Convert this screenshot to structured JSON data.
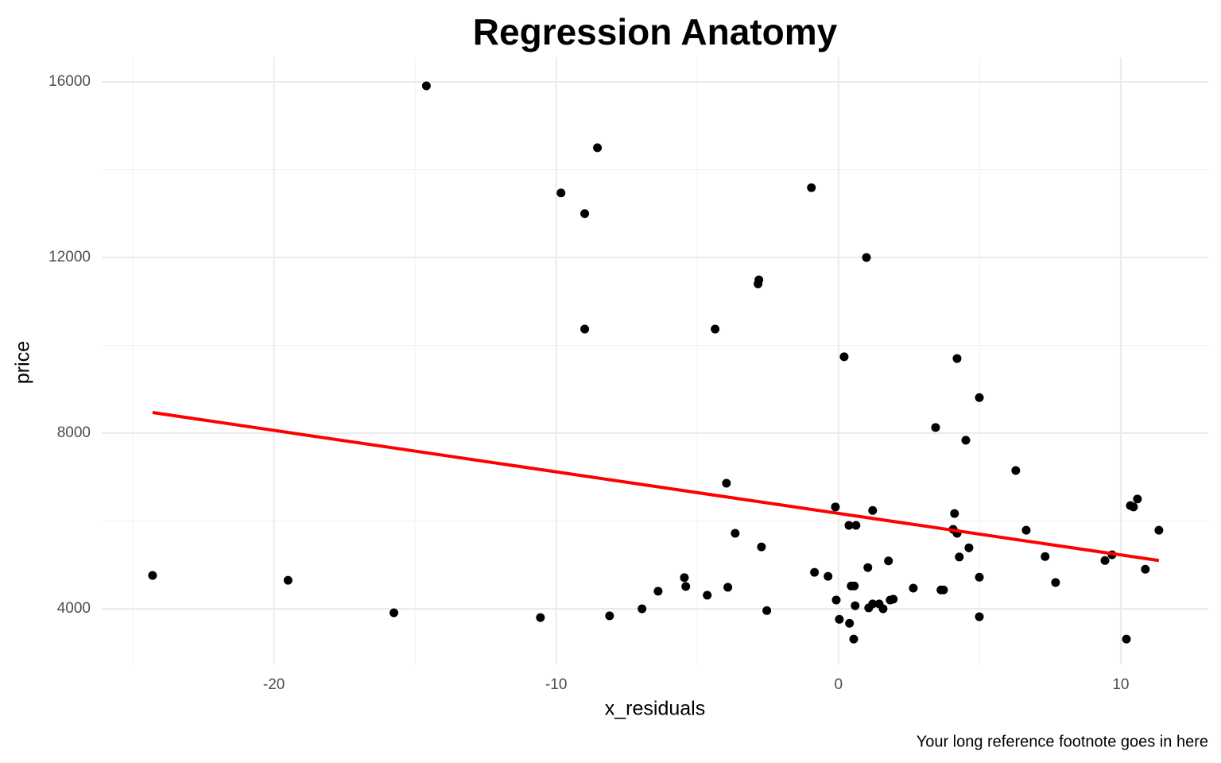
{
  "chart_data": {
    "type": "scatter",
    "title": "Regression Anatomy",
    "xlabel": "x_residuals",
    "ylabel": "price",
    "footnote": "Your long reference footnote goes in here",
    "x": [
      -24.3,
      -19.5,
      -15.75,
      -14.6,
      -10.56,
      -9.83,
      -8.99,
      -8.99,
      -8.54,
      -8.11,
      -6.96,
      -6.39,
      -5.46,
      -5.41,
      -4.65,
      -4.37,
      -3.97,
      -3.92,
      -3.66,
      -2.85,
      -2.82,
      -2.73,
      -2.54,
      -0.96,
      -0.85,
      -0.37,
      -0.11,
      -0.08,
      0.03,
      0.2,
      0.37,
      0.39,
      0.45,
      0.54,
      0.56,
      0.59,
      0.62,
      0.99,
      1.04,
      1.07,
      1.21,
      1.21,
      1.44,
      1.58,
      1.77,
      1.83,
      1.94,
      2.65,
      3.44,
      3.63,
      3.72,
      4.06,
      4.11,
      4.2,
      4.2,
      4.28,
      4.51,
      4.62,
      4.99,
      4.99,
      4.99,
      6.28,
      6.65,
      7.32,
      7.69,
      9.44,
      9.69,
      10.2,
      10.34,
      10.45,
      10.59,
      10.87,
      11.35
    ],
    "values": [
      4760,
      4650,
      3910,
      15910,
      3800,
      13470,
      13000,
      10370,
      14500,
      3840,
      4000,
      4400,
      4710,
      4510,
      4310,
      10370,
      6860,
      4490,
      5720,
      11400,
      11490,
      5410,
      3960,
      13590,
      4830,
      4740,
      6320,
      4200,
      3760,
      9740,
      5900,
      3670,
      4520,
      3310,
      4520,
      4070,
      5900,
      12000,
      4940,
      4020,
      6240,
      4110,
      4110,
      4000,
      5090,
      4200,
      4220,
      4470,
      8130,
      4430,
      4430,
      5810,
      6170,
      9700,
      5720,
      5180,
      7840,
      5390,
      8810,
      4720,
      3820,
      7150,
      5790,
      5190,
      4600,
      5100,
      5230,
      3310,
      6350,
      6320,
      6500,
      4900,
      5790
    ],
    "color": "#000000",
    "fit_line": {
      "x": [
        -24.3,
        11.35
      ],
      "values": [
        8470,
        5100
      ],
      "color": "#ff0000"
    },
    "xlim": [
      -26.1,
      13.1
    ],
    "ylim": [
      2733,
      16561
    ],
    "xticks": [
      -20,
      -10,
      0,
      10
    ],
    "yticks": [
      4000,
      8000,
      12000,
      16000
    ],
    "xminor": [
      -25,
      -15,
      -5,
      5
    ],
    "yminor": [
      6000,
      10000,
      14000
    ],
    "grid": true
  }
}
